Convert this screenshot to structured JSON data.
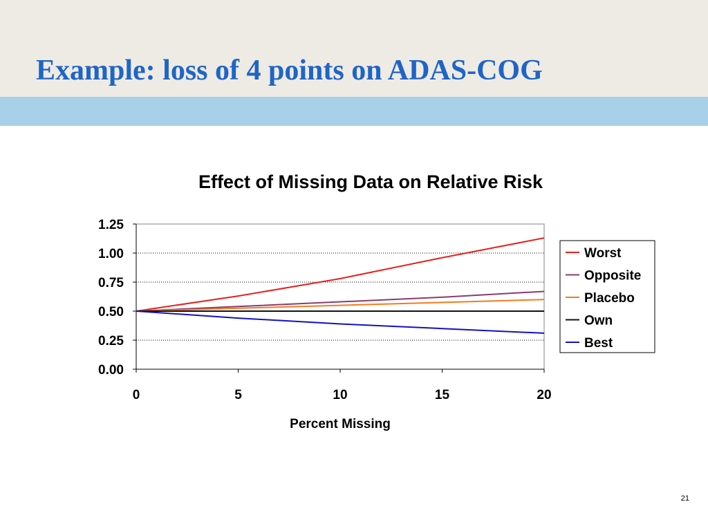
{
  "slide": {
    "title": "Example: loss of 4 points on ADAS-COG",
    "page_number": "21"
  },
  "colors": {
    "title": "#1f65c7",
    "title_band": "#eeebe5",
    "accent_band": "#a8d0e8"
  },
  "chart_data": {
    "type": "line",
    "title": "Effect of Missing Data on Relative Risk",
    "xlabel": "Percent Missing",
    "ylabel": "",
    "xlim": [
      0,
      20
    ],
    "ylim": [
      0,
      1.25
    ],
    "x_ticks": [
      "0",
      "5",
      "10",
      "15",
      "20"
    ],
    "y_ticks": [
      "0.00",
      "0.25",
      "0.50",
      "0.75",
      "1.00",
      "1.25"
    ],
    "grid": "horizontal dotted",
    "legend_position": "right",
    "x": [
      0,
      5,
      10,
      15,
      20
    ],
    "series": [
      {
        "name": "Worst",
        "color": "#e8201b",
        "values": [
          0.5,
          0.63,
          0.78,
          0.96,
          1.13
        ]
      },
      {
        "name": "Opposite",
        "color": "#8b3a6e",
        "values": [
          0.5,
          0.54,
          0.58,
          0.62,
          0.67
        ]
      },
      {
        "name": "Placebo",
        "color": "#f07c1e",
        "values": [
          0.5,
          0.525,
          0.55,
          0.575,
          0.6
        ]
      },
      {
        "name": "Own",
        "color": "#111111",
        "values": [
          0.5,
          0.5,
          0.5,
          0.5,
          0.5
        ]
      },
      {
        "name": "Best",
        "color": "#1010c8",
        "values": [
          0.5,
          0.44,
          0.39,
          0.35,
          0.31
        ]
      }
    ]
  }
}
